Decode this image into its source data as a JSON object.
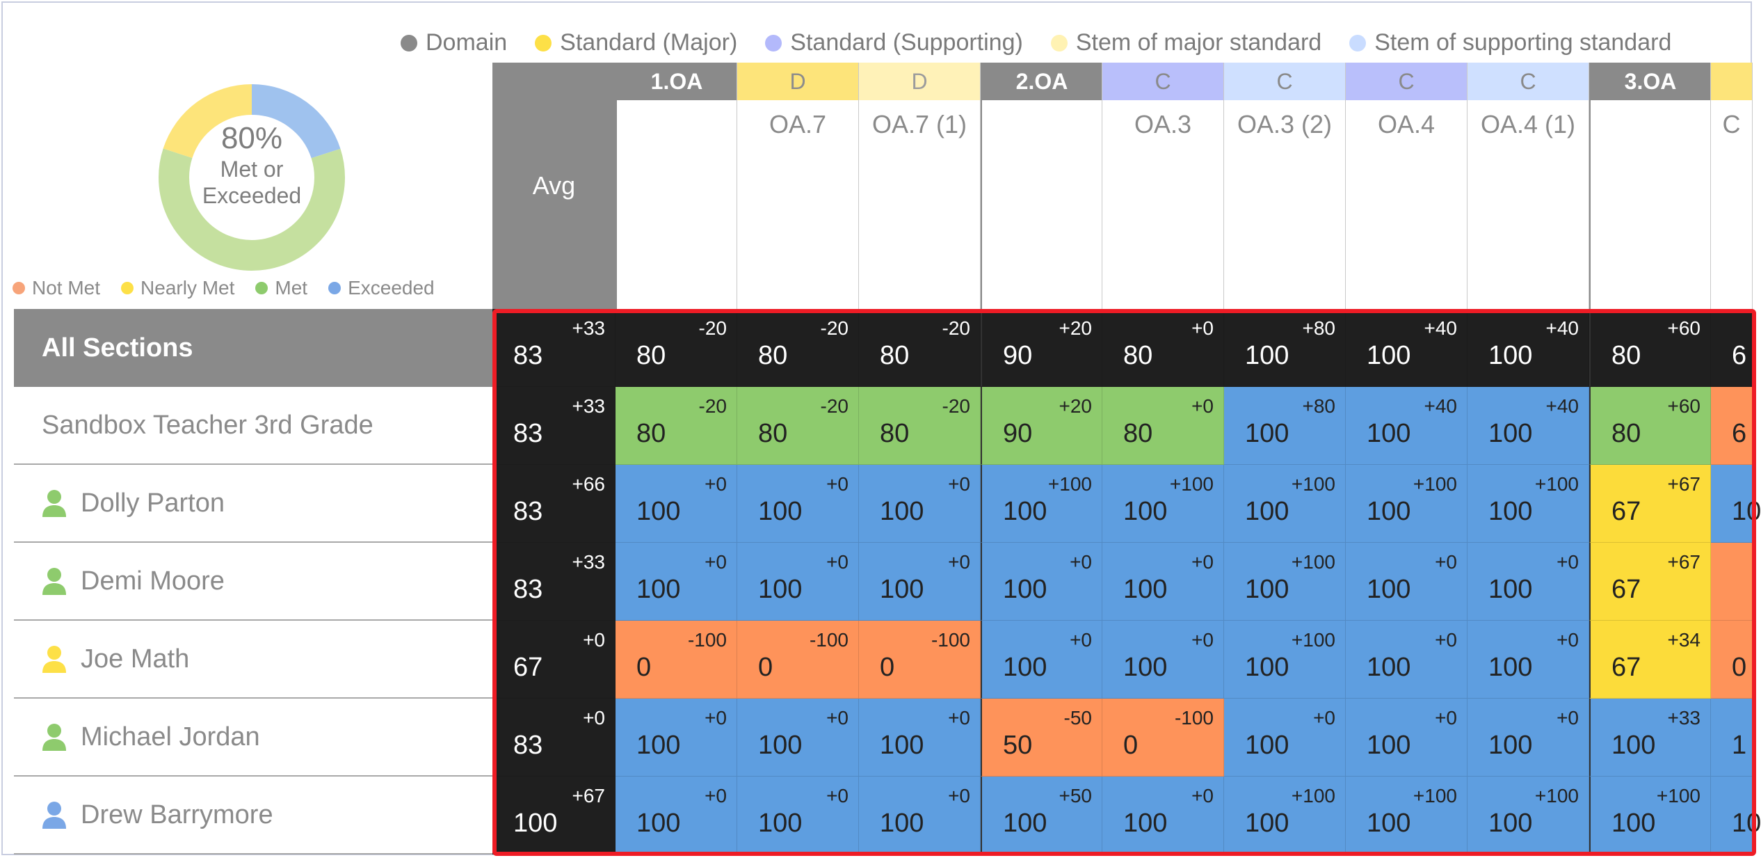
{
  "legend_top": [
    {
      "label": "Domain",
      "color": "#8a8a8a"
    },
    {
      "label": "Standard (Major)",
      "color": "#fde047"
    },
    {
      "label": "Standard (Supporting)",
      "color": "#b3b9fb"
    },
    {
      "label": "Stem of major standard",
      "color": "#fff2b3"
    },
    {
      "label": "Stem of supporting standard",
      "color": "#c9dcff"
    }
  ],
  "donut": {
    "percent": "80%",
    "line1": "Met or",
    "line2": "Exceeded",
    "segments": [
      {
        "label": "Met",
        "fraction": 0.6,
        "color": "#c5e09f"
      },
      {
        "label": "Nearly Met",
        "fraction": 0.2,
        "color": "#fde47a"
      },
      {
        "label": "Exceeded",
        "fraction": 0.2,
        "color": "#9fc2ee"
      }
    ]
  },
  "legend_bottom": [
    {
      "label": "Not Met",
      "color": "#f7a47a"
    },
    {
      "label": "Nearly Met",
      "color": "#fde047"
    },
    {
      "label": "Met",
      "color": "#8ecb6d"
    },
    {
      "label": "Exceeded",
      "color": "#7aa7e6"
    }
  ],
  "avg_label": "Avg",
  "columns": [
    {
      "cap": "1.OA",
      "kind": "domain",
      "label": ""
    },
    {
      "cap": "D",
      "kind": "major",
      "label": "OA.7"
    },
    {
      "cap": "D",
      "kind": "stem-major",
      "label": "OA.7 (1)"
    },
    {
      "cap": "2.OA",
      "kind": "domain",
      "label": ""
    },
    {
      "cap": "C",
      "kind": "supp",
      "label": "OA.3"
    },
    {
      "cap": "C",
      "kind": "stem-supp",
      "label": "OA.3 (2)"
    },
    {
      "cap": "C",
      "kind": "supp",
      "label": "OA.4"
    },
    {
      "cap": "C",
      "kind": "stem-supp",
      "label": "OA.4 (1)"
    },
    {
      "cap": "3.OA",
      "kind": "domain",
      "label": ""
    },
    {
      "cap": "",
      "kind": "major",
      "label": "C"
    }
  ],
  "colors": {
    "dark": "#1f1f1f",
    "met": "#8ecb6d",
    "exceeded": "#5e9ee0",
    "nearly": "#fcdc3a",
    "notmet": "#fe935a"
  },
  "rows": [
    {
      "name": "All Sections",
      "type": "all",
      "avg": {
        "v": "83",
        "d": "+33"
      },
      "cells": [
        [
          "80",
          "-20",
          "dark"
        ],
        [
          "80",
          "-20",
          "dark"
        ],
        [
          "80",
          "-20",
          "dark"
        ],
        [
          "90",
          "+20",
          "dark"
        ],
        [
          "80",
          "+0",
          "dark"
        ],
        [
          "100",
          "+80",
          "dark"
        ],
        [
          "100",
          "+40",
          "dark"
        ],
        [
          "100",
          "+40",
          "dark"
        ],
        [
          "80",
          "+60",
          "dark"
        ],
        [
          "6",
          "",
          "dark"
        ]
      ]
    },
    {
      "name": "Sandbox Teacher 3rd Grade",
      "type": "section",
      "avg": {
        "v": "83",
        "d": "+33"
      },
      "cells": [
        [
          "80",
          "-20",
          "met"
        ],
        [
          "80",
          "-20",
          "met"
        ],
        [
          "80",
          "-20",
          "met"
        ],
        [
          "90",
          "+20",
          "met"
        ],
        [
          "80",
          "+0",
          "met"
        ],
        [
          "100",
          "+80",
          "exceeded"
        ],
        [
          "100",
          "+40",
          "exceeded"
        ],
        [
          "100",
          "+40",
          "exceeded"
        ],
        [
          "80",
          "+60",
          "met"
        ],
        [
          "6",
          "",
          "notmet"
        ]
      ]
    },
    {
      "name": "Dolly Parton",
      "type": "student",
      "icon": "#8ecb6d",
      "avg": {
        "v": "83",
        "d": "+66"
      },
      "cells": [
        [
          "100",
          "+0",
          "exceeded"
        ],
        [
          "100",
          "+0",
          "exceeded"
        ],
        [
          "100",
          "+0",
          "exceeded"
        ],
        [
          "100",
          "+100",
          "exceeded"
        ],
        [
          "100",
          "+100",
          "exceeded"
        ],
        [
          "100",
          "+100",
          "exceeded"
        ],
        [
          "100",
          "+100",
          "exceeded"
        ],
        [
          "100",
          "+100",
          "exceeded"
        ],
        [
          "67",
          "+67",
          "nearly"
        ],
        [
          "10",
          "",
          "exceeded"
        ]
      ]
    },
    {
      "name": "Demi Moore",
      "type": "student",
      "icon": "#8ecb6d",
      "avg": {
        "v": "83",
        "d": "+33"
      },
      "cells": [
        [
          "100",
          "+0",
          "exceeded"
        ],
        [
          "100",
          "+0",
          "exceeded"
        ],
        [
          "100",
          "+0",
          "exceeded"
        ],
        [
          "100",
          "+0",
          "exceeded"
        ],
        [
          "100",
          "+0",
          "exceeded"
        ],
        [
          "100",
          "+100",
          "exceeded"
        ],
        [
          "100",
          "+0",
          "exceeded"
        ],
        [
          "100",
          "+0",
          "exceeded"
        ],
        [
          "67",
          "+67",
          "nearly"
        ],
        [
          "",
          "",
          "notmet"
        ]
      ]
    },
    {
      "name": "Joe Math",
      "type": "student",
      "icon": "#fde047",
      "avg": {
        "v": "67",
        "d": "+0"
      },
      "cells": [
        [
          "0",
          "-100",
          "notmet"
        ],
        [
          "0",
          "-100",
          "notmet"
        ],
        [
          "0",
          "-100",
          "notmet"
        ],
        [
          "100",
          "+0",
          "exceeded"
        ],
        [
          "100",
          "+0",
          "exceeded"
        ],
        [
          "100",
          "+100",
          "exceeded"
        ],
        [
          "100",
          "+0",
          "exceeded"
        ],
        [
          "100",
          "+0",
          "exceeded"
        ],
        [
          "67",
          "+34",
          "nearly"
        ],
        [
          "0",
          "",
          "notmet"
        ]
      ]
    },
    {
      "name": "Michael Jordan",
      "type": "student",
      "icon": "#8ecb6d",
      "avg": {
        "v": "83",
        "d": "+0"
      },
      "cells": [
        [
          "100",
          "+0",
          "exceeded"
        ],
        [
          "100",
          "+0",
          "exceeded"
        ],
        [
          "100",
          "+0",
          "exceeded"
        ],
        [
          "50",
          "-50",
          "notmet"
        ],
        [
          "0",
          "-100",
          "notmet"
        ],
        [
          "100",
          "+0",
          "exceeded"
        ],
        [
          "100",
          "+0",
          "exceeded"
        ],
        [
          "100",
          "+0",
          "exceeded"
        ],
        [
          "100",
          "+33",
          "exceeded"
        ],
        [
          "1",
          "",
          "exceeded"
        ]
      ]
    },
    {
      "name": "Drew Barrymore",
      "type": "student",
      "icon": "#7aa7e6",
      "avg": {
        "v": "100",
        "d": "+67"
      },
      "cells": [
        [
          "100",
          "+0",
          "exceeded"
        ],
        [
          "100",
          "+0",
          "exceeded"
        ],
        [
          "100",
          "+0",
          "exceeded"
        ],
        [
          "100",
          "+50",
          "exceeded"
        ],
        [
          "100",
          "+0",
          "exceeded"
        ],
        [
          "100",
          "+100",
          "exceeded"
        ],
        [
          "100",
          "+100",
          "exceeded"
        ],
        [
          "100",
          "+100",
          "exceeded"
        ],
        [
          "100",
          "+100",
          "exceeded"
        ],
        [
          "10",
          "",
          "exceeded"
        ]
      ]
    }
  ]
}
